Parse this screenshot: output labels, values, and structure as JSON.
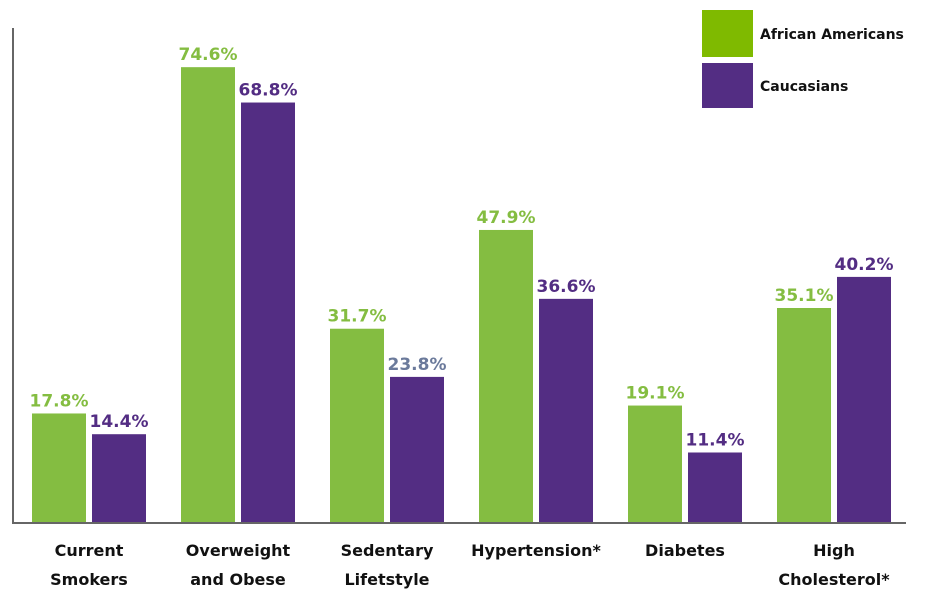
{
  "chart_data": {
    "type": "bar",
    "categories": [
      [
        "Current",
        "Smokers"
      ],
      [
        "Overweight",
        "and Obese"
      ],
      [
        "Sedentary",
        "Lifetstyle"
      ],
      [
        "Hypertension*"
      ],
      [
        "Diabetes"
      ],
      [
        "High",
        "Cholesterol*"
      ]
    ],
    "series": [
      {
        "name": "African Americans",
        "color": "#84bd41",
        "values": [
          17.8,
          74.6,
          31.7,
          47.9,
          19.1,
          35.1
        ],
        "labels": [
          "17.8%",
          "74.6%",
          "31.7%",
          "47.9%",
          "19.1%",
          "35.1%"
        ]
      },
      {
        "name": "Caucasians",
        "color": "#532d83",
        "values": [
          14.4,
          68.8,
          23.8,
          36.6,
          11.4,
          40.2
        ],
        "labels": [
          "14.4%",
          "68.8%",
          "23.8%",
          "36.6%",
          "11.4%",
          "40.2%"
        ]
      }
    ],
    "legend_colors": [
      "#7fba00",
      "#532d83"
    ],
    "label_colors": {
      "African Americans": "#84bd41",
      "Caucasians": "#532d83",
      "Caucasians_sedentary": "#6b7a9b"
    },
    "ylim": [
      0,
      80
    ],
    "legend_position": "top-right",
    "grid": false
  }
}
